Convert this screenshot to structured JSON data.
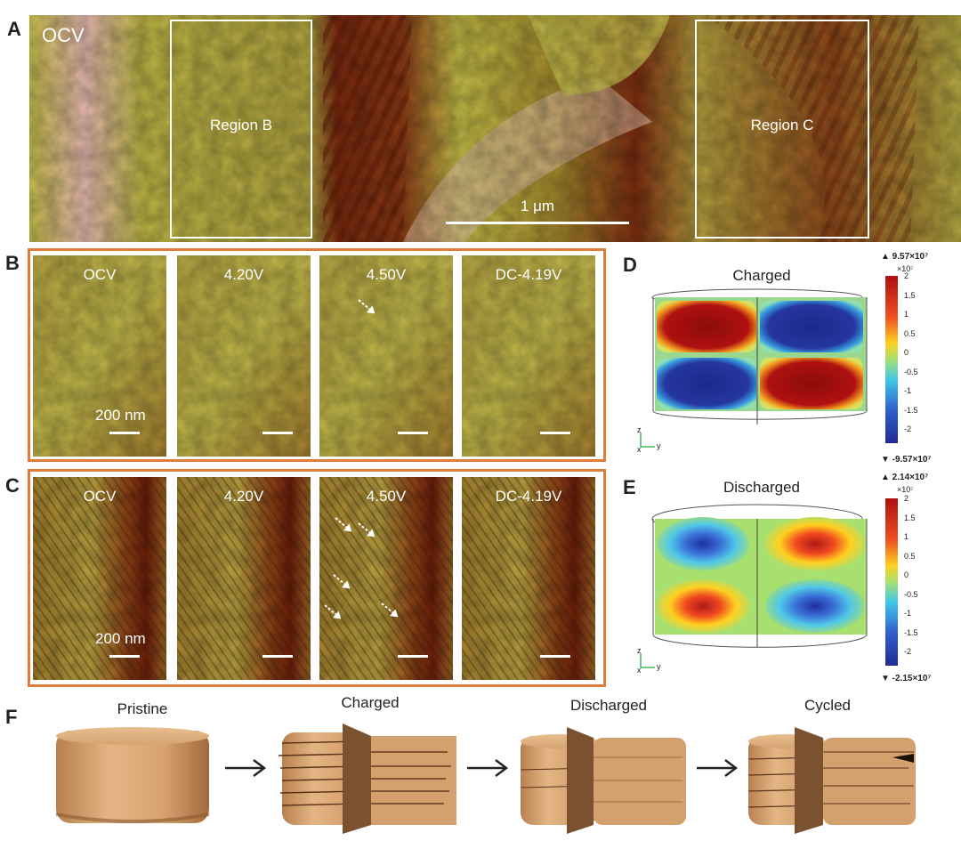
{
  "panels": {
    "A": "A",
    "B": "B",
    "C": "C",
    "D": "D",
    "E": "E",
    "F": "F"
  },
  "panelA": {
    "state": "OCV",
    "regionB": "Region B",
    "regionC": "Region C",
    "scale": "1 μm"
  },
  "rowB": {
    "labels": [
      "OCV",
      "4.20V",
      "4.50V",
      "DC-4.19V"
    ],
    "scale": "200 nm"
  },
  "rowC": {
    "labels": [
      "OCV",
      "4.20V",
      "4.50V",
      "DC-4.19V"
    ],
    "scale": "200 nm"
  },
  "panelD": {
    "title": "Charged",
    "cb_max": "▲ 9.57×10⁷",
    "cb_exp": "×10⁷",
    "cb_ticks": [
      "2",
      "1.5",
      "1",
      "0.5",
      "0",
      "-0.5",
      "-1",
      "-1.5",
      "-2"
    ],
    "cb_min": "▼ -9.57×10⁷",
    "axes": {
      "z": "z",
      "y": "y",
      "x": "x"
    }
  },
  "panelE": {
    "title": "Discharged",
    "cb_max": "▲ 2.14×10⁷",
    "cb_exp": "×10⁷",
    "cb_ticks": [
      "2",
      "1.5",
      "1",
      "0.5",
      "0",
      "-0.5",
      "-1",
      "-1.5",
      "-2"
    ],
    "cb_min": "▼ -2.15×10⁷",
    "axes": {
      "z": "z",
      "y": "y",
      "x": "x"
    }
  },
  "panelF": {
    "stages": [
      "Pristine",
      "Charged",
      "Discharged",
      "Cycled"
    ]
  },
  "colors": {
    "frame": "#e37b3a",
    "afm_light": "#b7b33c",
    "afm_dark": "#8a3a12"
  }
}
